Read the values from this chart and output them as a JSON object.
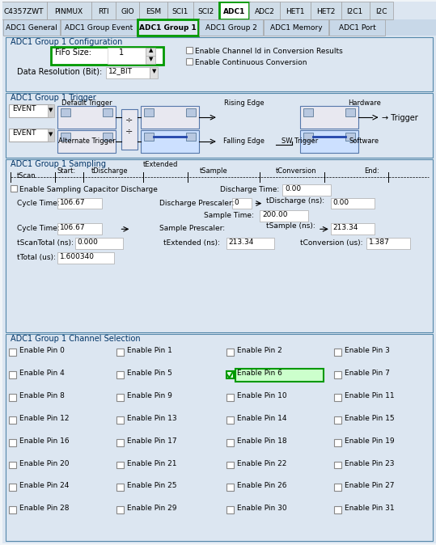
{
  "bg_color": "#f0f0f0",
  "panel_bg": "#dce6f1",
  "white": "#ffffff",
  "tab_bar_bg": "#c8d8e8",
  "green_highlight": "#00aa00",
  "blue_line": "#4472c4",
  "text_color": "#000000",
  "title": "",
  "top_tabs": [
    "C4357ZWT",
    "PINMUX",
    "RTI",
    "GIO",
    "ESM",
    "SCI1",
    "SCI2",
    "ADC1",
    "ADC2",
    "HET1",
    "HET2",
    "I2C1",
    "I2C"
  ],
  "mid_tabs": [
    "ADC1 General",
    "ADC1 Group Event",
    "ADC1 Group 1",
    "ADC1 Group 2",
    "ADC1 Memory",
    "ADC1 Port"
  ],
  "selected_top_tab": "ADC1",
  "selected_mid_tab": "ADC1 Group 1",
  "section1_title": "ADC1 Group 1 Configuration",
  "fifo_label": "FiFo Size: 1",
  "data_res_label": "Data Resolution (Bit): 12_BIT",
  "enable_ch_id": "Enable Channel Id in Conversion Results",
  "enable_cont": "Enable Continuous Conversion",
  "section2_title": "ADC1 Group 1 Trigger",
  "event1": "EVENT",
  "event2": "EVENT",
  "default_trigger": "Default Trigger",
  "alternate_trigger": "Alternate Trigger",
  "rising_edge": "Rising Edge",
  "falling_edge": "Falling Edge",
  "sw_trigger": "SW Trigger",
  "hardware": "Hardware",
  "software": "Software",
  "trigger_label": "→ Trigger",
  "section3_title": "ADC1 Group 1 Sampling",
  "sampling_labels": [
    "tScan",
    "Start:",
    "tDischarge",
    "tExtended",
    "tSample",
    "tConversion",
    "End:"
  ],
  "sampling_row2": [
    "Enable Sampling Capacitor Discharge",
    "Discharge Time:",
    "0.00"
  ],
  "cycle_time1": [
    "Cycle Time:",
    "106.67"
  ],
  "discharge_prescaler": [
    "Discharge Prescaler:",
    "0",
    "tDischarge (ns):",
    "0.00"
  ],
  "sample_time": [
    "Sample Time:",
    "200.00"
  ],
  "sample_prescaler": [
    "Sample Prescaler:",
    "tSample (ns):"
  ],
  "cycle_time2": [
    "Cycle Time:",
    "106.67",
    "213.34"
  ],
  "tscan_total": [
    "tScanTotal (ns):",
    "0.000"
  ],
  "textended": [
    "tExtended (ns):",
    "213.34"
  ],
  "tconversion": [
    "tConversion (us):",
    "1.387"
  ],
  "ttotal": [
    "tTotal (us):",
    "1.600340"
  ],
  "section4_title": "ADC1 Group 1 Channel Selection",
  "channel_pins": [
    [
      "Enable Pin 0",
      "Enable Pin 1",
      "Enable Pin 2",
      "Enable Pin 3"
    ],
    [
      "Enable Pin 4",
      "Enable Pin 5",
      "Enable Pin 6",
      "Enable Pin 7"
    ],
    [
      "Enable Pin 8",
      "Enable Pin 9",
      "Enable Pin 10",
      "Enable Pin 11"
    ],
    [
      "Enable Pin 12",
      "Enable Pin 13",
      "Enable Pin 14",
      "Enable Pin 15"
    ],
    [
      "Enable Pin 16",
      "Enable Pin 17",
      "Enable Pin 18",
      "Enable Pin 19"
    ],
    [
      "Enable Pin 20",
      "Enable Pin 21",
      "Enable Pin 22",
      "Enable Pin 23"
    ],
    [
      "Enable Pin 24",
      "Enable Pin 25",
      "Enable Pin 26",
      "Enable Pin 27"
    ],
    [
      "Enable Pin 28",
      "Enable Pin 29",
      "Enable Pin 30",
      "Enable Pin 31"
    ]
  ],
  "highlighted_pin": "Enable Pin 6",
  "highlighted_pin_row": 1,
  "highlighted_pin_col": 2
}
